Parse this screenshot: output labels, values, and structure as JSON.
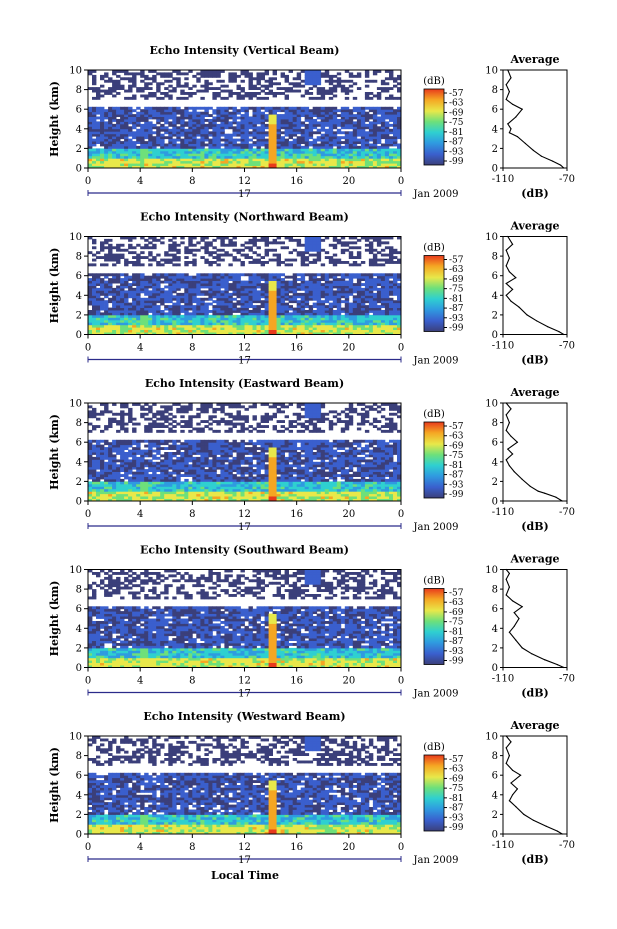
{
  "chart_data": [
    {
      "type": "heatmap",
      "title": "Echo Intensity (Vertical Beam)",
      "ylabel": "Height (km)",
      "xlabel": "Local Time",
      "x_ticks": [
        "0",
        "4",
        "8",
        "12",
        "16",
        "20",
        "0"
      ],
      "y_ticks": [
        "0",
        "2",
        "4",
        "6",
        "8",
        "10"
      ],
      "xlim": [
        0,
        24
      ],
      "ylim": [
        0,
        10
      ],
      "date_labels": {
        "day": "17",
        "month_year": "Jan 2009"
      },
      "colorbar": {
        "label": "(dB)",
        "ticks": [
          "-57",
          "-63",
          "-69",
          "-75",
          "-81",
          "-87",
          "-93",
          "-99"
        ]
      },
      "profile": {
        "title": "Average",
        "xlabel": "(dB)",
        "x_ticks": [
          "-110",
          "-70"
        ],
        "xlim": [
          -110,
          -70
        ],
        "y_ticks": [
          "0",
          "2",
          "4",
          "6",
          "8",
          "10"
        ],
        "points": [
          [
            -72,
            0
          ],
          [
            -74,
            0.3
          ],
          [
            -79,
            0.7
          ],
          [
            -86,
            1.2
          ],
          [
            -91,
            1.8
          ],
          [
            -96,
            2.5
          ],
          [
            -101,
            3.2
          ],
          [
            -106,
            3.6
          ],
          [
            -105,
            4.0
          ],
          [
            -107,
            4.5
          ],
          [
            -102,
            5.2
          ],
          [
            -98,
            6.0
          ],
          [
            -104,
            6.5
          ],
          [
            -108,
            7.0
          ],
          [
            -106,
            7.8
          ],
          [
            -108,
            8.5
          ],
          [
            -105,
            9.2
          ],
          [
            -107,
            10
          ]
        ]
      }
    },
    {
      "type": "heatmap",
      "title": "Echo Intensity (Northward Beam)",
      "ylabel": "Height (km)",
      "xlabel": "Local Time",
      "x_ticks": [
        "0",
        "4",
        "8",
        "12",
        "16",
        "20",
        "0"
      ],
      "y_ticks": [
        "0",
        "2",
        "4",
        "6",
        "8",
        "10"
      ],
      "xlim": [
        0,
        24
      ],
      "ylim": [
        0,
        10
      ],
      "date_labels": {
        "day": "17",
        "month_year": "Jan 2009"
      },
      "colorbar": {
        "label": "(dB)",
        "ticks": [
          "-57",
          "-63",
          "-69",
          "-75",
          "-81",
          "-87",
          "-93",
          "-99"
        ]
      },
      "profile": {
        "title": "Average",
        "xlabel": "(dB)",
        "x_ticks": [
          "-110",
          "-70"
        ],
        "xlim": [
          -110,
          -70
        ],
        "y_ticks": [
          "0",
          "2",
          "4",
          "6",
          "8",
          "10"
        ],
        "points": [
          [
            -72,
            0
          ],
          [
            -75,
            0.3
          ],
          [
            -82,
            0.8
          ],
          [
            -89,
            1.4
          ],
          [
            -95,
            2.0
          ],
          [
            -100,
            2.8
          ],
          [
            -105,
            3.4
          ],
          [
            -108,
            4.0
          ],
          [
            -104,
            4.6
          ],
          [
            -108,
            5.2
          ],
          [
            -102,
            5.8
          ],
          [
            -106,
            6.4
          ],
          [
            -108,
            7.0
          ],
          [
            -106,
            7.8
          ],
          [
            -108,
            8.6
          ],
          [
            -104,
            9.2
          ],
          [
            -107,
            10
          ]
        ]
      }
    },
    {
      "type": "heatmap",
      "title": "Echo Intensity (Eastward Beam)",
      "ylabel": "Height (km)",
      "xlabel": "Local Time",
      "x_ticks": [
        "0",
        "4",
        "8",
        "12",
        "16",
        "20",
        "0"
      ],
      "y_ticks": [
        "0",
        "2",
        "4",
        "6",
        "8",
        "10"
      ],
      "xlim": [
        0,
        24
      ],
      "ylim": [
        0,
        10
      ],
      "date_labels": {
        "day": "17",
        "month_year": "Jan 2009"
      },
      "colorbar": {
        "label": "(dB)",
        "ticks": [
          "-57",
          "-63",
          "-69",
          "-75",
          "-81",
          "-87",
          "-93",
          "-99"
        ]
      },
      "profile": {
        "title": "Average",
        "xlabel": "(dB)",
        "x_ticks": [
          "-110",
          "-70"
        ],
        "xlim": [
          -110,
          -70
        ],
        "y_ticks": [
          "0",
          "2",
          "4",
          "6",
          "8",
          "10"
        ],
        "points": [
          [
            -73,
            0
          ],
          [
            -77,
            0.4
          ],
          [
            -84,
            0.8
          ],
          [
            -88,
            1.0
          ],
          [
            -93,
            1.5
          ],
          [
            -98,
            2.2
          ],
          [
            -103,
            3.0
          ],
          [
            -106,
            3.6
          ],
          [
            -108,
            4.2
          ],
          [
            -104,
            4.8
          ],
          [
            -107,
            5.3
          ],
          [
            -101,
            6.0
          ],
          [
            -105,
            6.6
          ],
          [
            -108,
            7.2
          ],
          [
            -106,
            8.0
          ],
          [
            -108,
            8.8
          ],
          [
            -105,
            9.4
          ],
          [
            -108,
            10
          ]
        ]
      }
    },
    {
      "type": "heatmap",
      "title": "Echo Intensity (Southward Beam)",
      "ylabel": "Height (km)",
      "xlabel": "Local Time",
      "x_ticks": [
        "0",
        "4",
        "8",
        "12",
        "16",
        "20",
        "0"
      ],
      "y_ticks": [
        "0",
        "2",
        "4",
        "6",
        "8",
        "10"
      ],
      "xlim": [
        0,
        24
      ],
      "ylim": [
        0,
        10
      ],
      "date_labels": {
        "day": "17",
        "month_year": "Jan 2009"
      },
      "colorbar": {
        "label": "(dB)",
        "ticks": [
          "-57",
          "-63",
          "-69",
          "-75",
          "-81",
          "-87",
          "-93",
          "-99"
        ]
      },
      "profile": {
        "title": "Average",
        "xlabel": "(dB)",
        "x_ticks": [
          "-110",
          "-70"
        ],
        "xlim": [
          -110,
          -70
        ],
        "y_ticks": [
          "0",
          "2",
          "4",
          "6",
          "8",
          "10"
        ],
        "points": [
          [
            -72,
            0
          ],
          [
            -76,
            0.3
          ],
          [
            -84,
            0.8
          ],
          [
            -92,
            1.4
          ],
          [
            -98,
            2.0
          ],
          [
            -102,
            2.8
          ],
          [
            -106,
            3.6
          ],
          [
            -103,
            4.2
          ],
          [
            -100,
            5.0
          ],
          [
            -103,
            5.6
          ],
          [
            -98,
            6.2
          ],
          [
            -104,
            6.8
          ],
          [
            -108,
            7.4
          ],
          [
            -106,
            8.2
          ],
          [
            -108,
            9.0
          ],
          [
            -106,
            9.6
          ],
          [
            -108,
            10
          ]
        ]
      }
    },
    {
      "type": "heatmap",
      "title": "Echo Intensity (Westward Beam)",
      "ylabel": "Height (km)",
      "xlabel": "Local Time",
      "x_ticks": [
        "0",
        "4",
        "8",
        "12",
        "16",
        "20",
        "0"
      ],
      "y_ticks": [
        "0",
        "2",
        "4",
        "6",
        "8",
        "10"
      ],
      "xlim": [
        0,
        24
      ],
      "ylim": [
        0,
        10
      ],
      "date_labels": {
        "day": "17",
        "month_year": "Jan 2009"
      },
      "colorbar": {
        "label": "(dB)",
        "ticks": [
          "-57",
          "-63",
          "-69",
          "-75",
          "-81",
          "-87",
          "-93",
          "-99"
        ]
      },
      "profile": {
        "title": "Average",
        "xlabel": "(dB)",
        "x_ticks": [
          "-110",
          "-70"
        ],
        "xlim": [
          -110,
          -70
        ],
        "y_ticks": [
          "0",
          "2",
          "4",
          "6",
          "8",
          "10"
        ],
        "points": [
          [
            -73,
            0
          ],
          [
            -76,
            0.3
          ],
          [
            -83,
            0.8
          ],
          [
            -91,
            1.4
          ],
          [
            -97,
            2.0
          ],
          [
            -102,
            2.8
          ],
          [
            -106,
            3.4
          ],
          [
            -104,
            4.0
          ],
          [
            -101,
            4.6
          ],
          [
            -105,
            5.2
          ],
          [
            -99,
            6.0
          ],
          [
            -104,
            6.5
          ],
          [
            -108,
            7.2
          ],
          [
            -106,
            8.0
          ],
          [
            -108,
            8.8
          ],
          [
            -105,
            9.4
          ],
          [
            -108,
            10
          ]
        ]
      }
    }
  ],
  "figure": {
    "xlabel_bottom": "Local Time",
    "colors": {
      "background": "#ffffff",
      "noise_floor": "#3b3f7a",
      "colormap": [
        "#3b3f7a",
        "#3a5fcd",
        "#2f9be0",
        "#2fd0d0",
        "#6ee07a",
        "#e8e84a",
        "#f5a623",
        "#e83a1c"
      ]
    }
  }
}
